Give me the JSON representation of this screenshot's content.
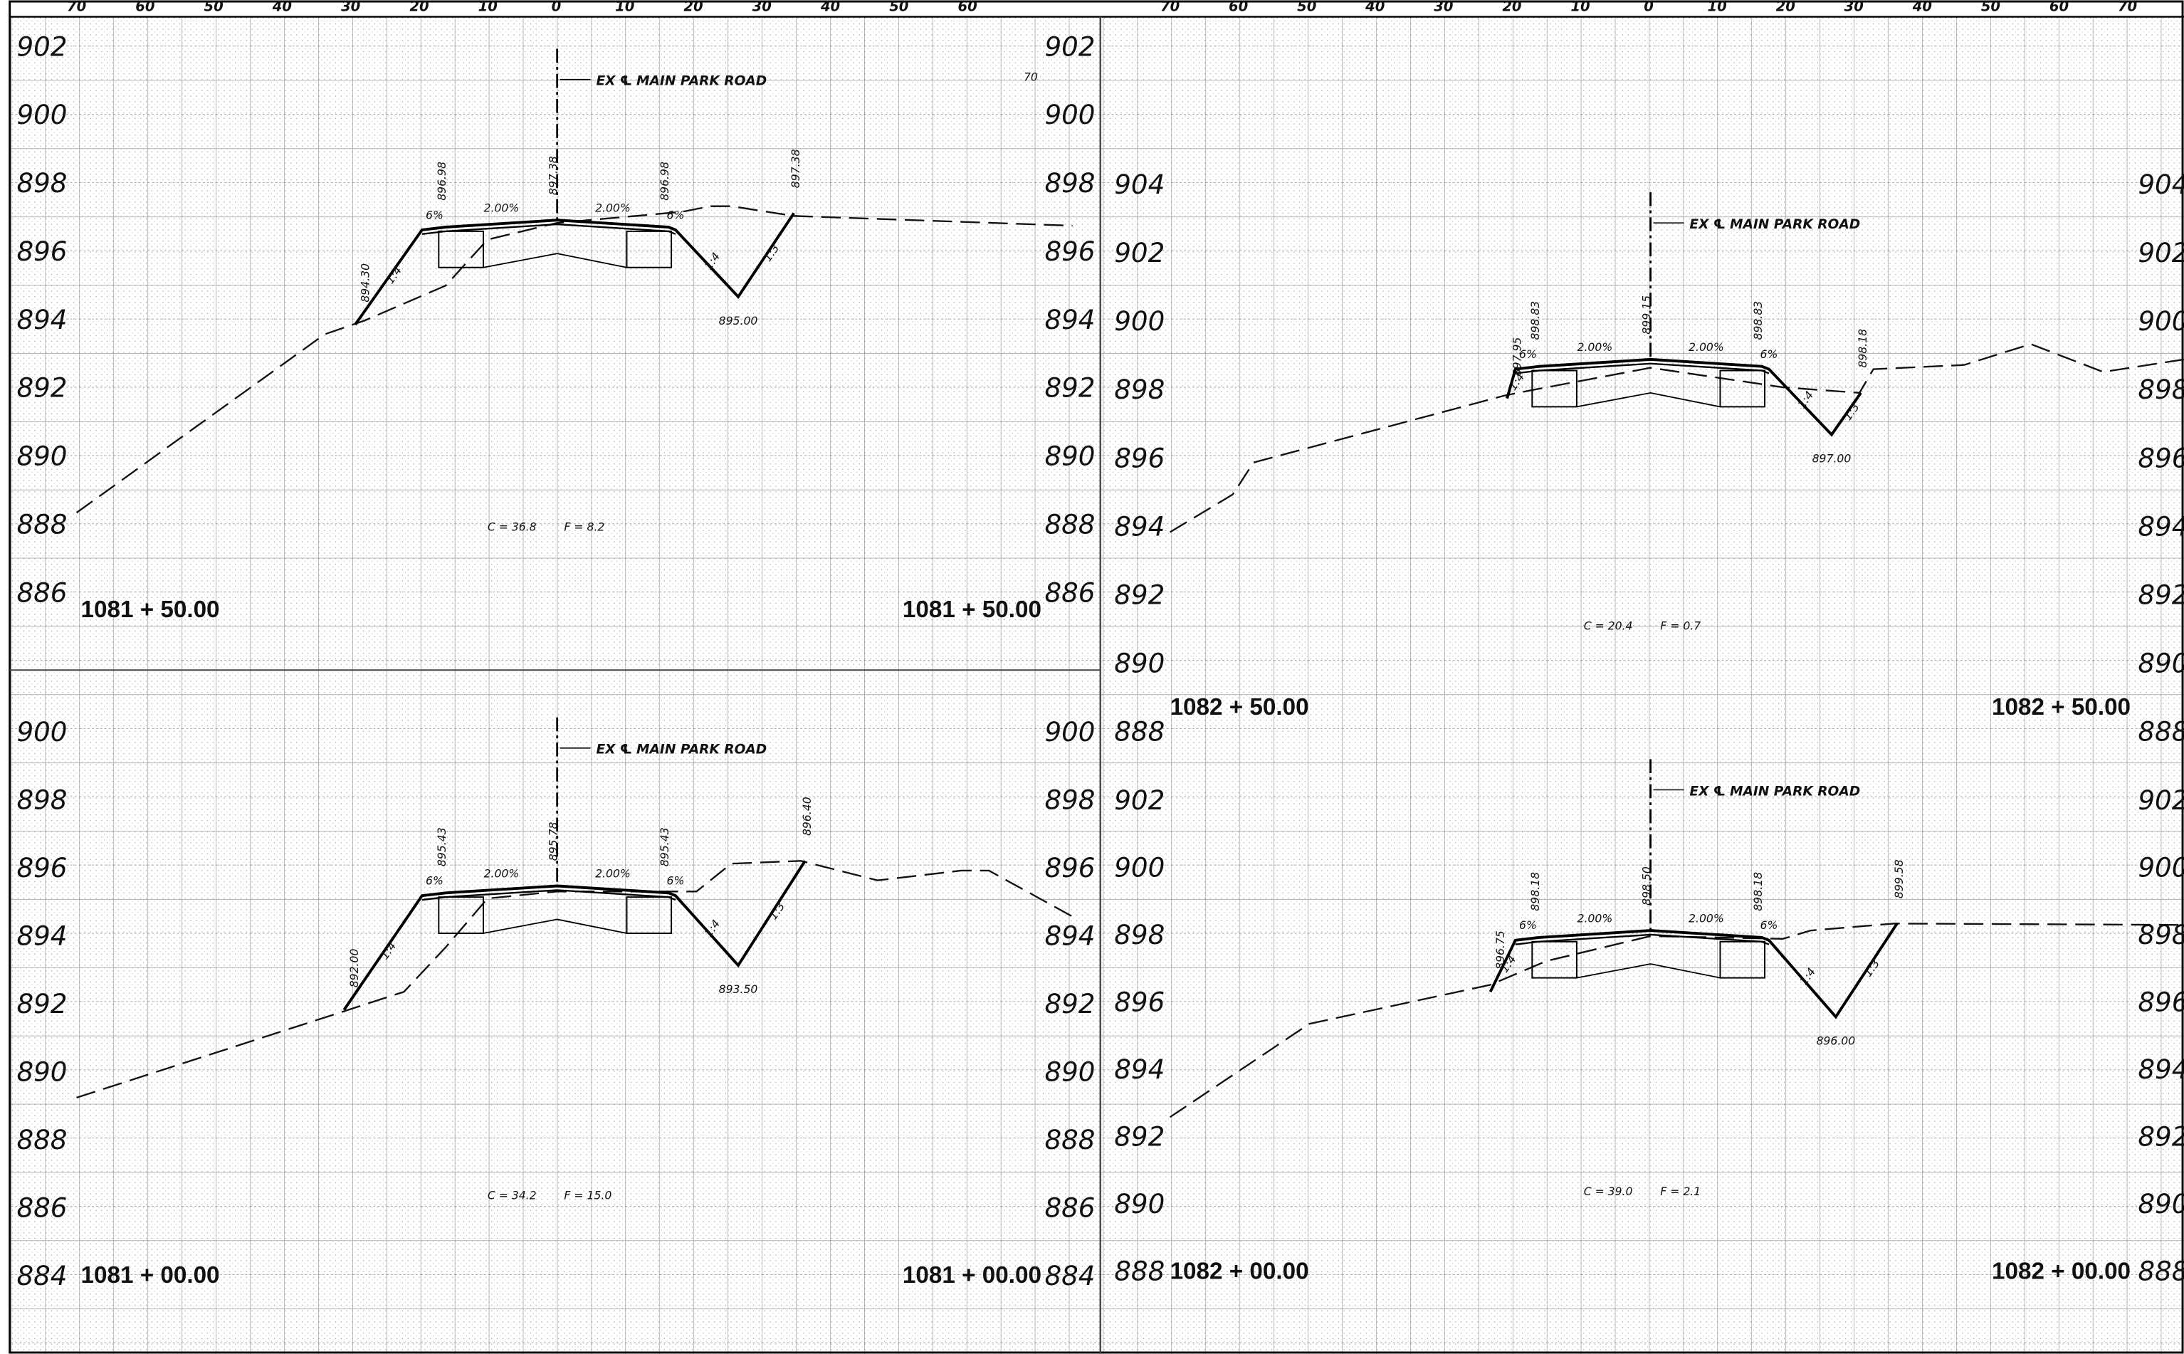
{
  "top_axis": {
    "left": [
      "70",
      "60",
      "50",
      "40",
      "30",
      "20",
      "10",
      "0",
      "10",
      "20",
      "30",
      "40",
      "50",
      "60"
    ],
    "right": [
      "70",
      "60",
      "50",
      "40",
      "30",
      "20",
      "10",
      "0",
      "10",
      "20",
      "30",
      "40",
      "50",
      "60",
      "70"
    ]
  },
  "stray_label": "70",
  "sections": [
    {
      "station": "1081 + 50.00",
      "elevations": [
        902,
        900,
        898,
        896,
        894,
        892,
        890,
        888,
        886
      ],
      "centerline_label": "EX ℄ MAIN PARK ROAD",
      "slopes": [
        "6%",
        "2.00%",
        "2.00%",
        "6%",
        "1:4",
        "1:4",
        "1:3"
      ],
      "callouts": [
        "894.30",
        "896.98",
        "897.38",
        "896.98",
        "897.38"
      ],
      "ditch_elevation": "895.00",
      "cut": "C = 36.8",
      "fill": "F = 8.2"
    },
    {
      "station": "1081 + 00.00",
      "elevations": [
        900,
        898,
        896,
        894,
        892,
        890,
        888,
        886,
        884
      ],
      "centerline_label": "EX ℄ MAIN PARK ROAD",
      "slopes": [
        "6%",
        "2.00%",
        "2.00%",
        "6%",
        "1:4",
        "1:4",
        "1:3"
      ],
      "callouts": [
        "892.00",
        "895.43",
        "895.78",
        "895.43",
        "896.40"
      ],
      "ditch_elevation": "893.50",
      "cut": "C = 34.2",
      "fill": "F = 15.0"
    },
    {
      "station": "1082 + 50.00",
      "elevations": [
        904,
        902,
        900,
        898,
        896,
        894,
        892,
        890,
        888
      ],
      "centerline_label": "EX ℄ MAIN PARK ROAD",
      "slopes": [
        "6%",
        "2.00%",
        "2.00%",
        "6%",
        "1:4",
        "1:4",
        "1:3"
      ],
      "callouts": [
        "897.95",
        "898.83",
        "899.15",
        "898.83",
        "898.18"
      ],
      "ditch_elevation": "897.00",
      "cut": "C = 20.4",
      "fill": "F = 0.7"
    },
    {
      "station": "1082 + 00.00",
      "elevations": [
        902,
        900,
        898,
        896,
        894,
        892,
        890,
        888
      ],
      "centerline_label": "EX ℄ MAIN PARK ROAD",
      "slopes": [
        "6%",
        "2.00%",
        "2.00%",
        "6%",
        "1:4",
        "1:4",
        "1:3"
      ],
      "callouts": [
        "896.75",
        "898.18",
        "898.50",
        "898.18",
        "899.58"
      ],
      "ditch_elevation": "896.00",
      "cut": "C = 39.0",
      "fill": "F = 2.1"
    }
  ]
}
